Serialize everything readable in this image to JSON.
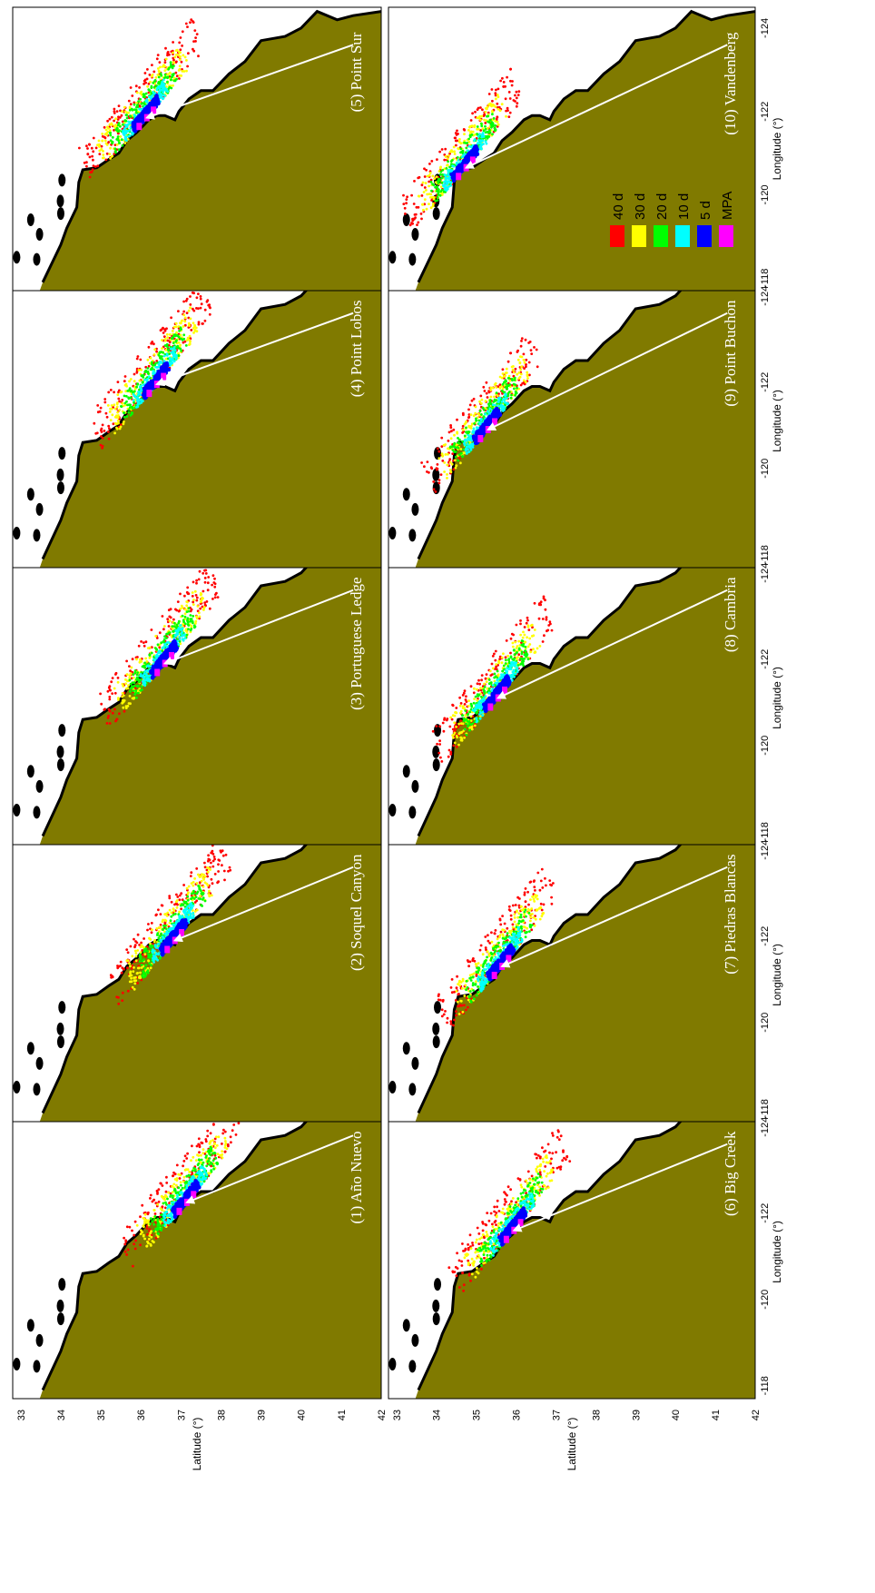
{
  "panels": [
    {
      "label": "(1) Año Nuevo",
      "site": [
        -122.25,
        37.15
      ],
      "arrow_from": [
        -123.8,
        41.3
      ]
    },
    {
      "label": "(2) Soquel Canyon",
      "site": [
        -121.9,
        36.85
      ],
      "arrow_from": [
        -123.6,
        41.3
      ]
    },
    {
      "label": "(3) Portuguese Ledge",
      "site": [
        -121.9,
        36.6
      ],
      "arrow_from": [
        -123.6,
        41.3
      ]
    },
    {
      "label": "(4) Point Lobos",
      "site": [
        -121.95,
        36.4
      ],
      "arrow_from": [
        -123.6,
        41.3
      ]
    },
    {
      "label": "(5) Point Sur",
      "site": [
        -121.85,
        36.15
      ],
      "arrow_from": [
        -123.6,
        41.3
      ]
    },
    {
      "label": "(6) Big Creek",
      "site": [
        -121.6,
        35.95
      ],
      "arrow_from": [
        -123.6,
        41.3
      ]
    },
    {
      "label": "(7) Piedras Blancas",
      "site": [
        -121.3,
        35.65
      ],
      "arrow_from": [
        -123.6,
        41.3
      ]
    },
    {
      "label": "(8) Cambria",
      "site": [
        -121.1,
        35.55
      ],
      "arrow_from": [
        -123.6,
        41.3
      ]
    },
    {
      "label": "(9) Point Buchon",
      "site": [
        -120.9,
        35.3
      ],
      "arrow_from": [
        -123.6,
        41.3
      ]
    },
    {
      "label": "(10) Vandenberg",
      "site": [
        -120.65,
        34.75
      ],
      "arrow_from": [
        -123.6,
        41.3
      ]
    }
  ],
  "axes": {
    "x_label": "Longitude (°)",
    "y_label": "Latitude (°)",
    "x_range": [
      -124.5,
      -117.7
    ],
    "y_range": [
      32.8,
      42.0
    ],
    "x_ticks": [
      -124,
      -122,
      -120,
      -118
    ],
    "y_ticks": [
      42,
      41,
      40,
      39,
      38,
      37,
      36,
      35,
      34,
      33
    ]
  },
  "legend": {
    "items": [
      {
        "label": "40 d",
        "color": "#ff0000"
      },
      {
        "label": "30 d",
        "color": "#ffff00"
      },
      {
        "label": "20 d",
        "color": "#00ff00"
      },
      {
        "label": "10 d",
        "color": "#00ffff"
      },
      {
        "label": "5 d",
        "color": "#0000ff"
      },
      {
        "label": "MPA",
        "color": "#ff00ff"
      }
    ]
  },
  "colors": {
    "land": "#807a00",
    "coast": "#000000",
    "ocean": "#ffffff",
    "arrow": "#ffffff"
  },
  "coastline": [
    [
      -124.4,
      42.0
    ],
    [
      -124.3,
      41.3
    ],
    [
      -124.2,
      40.9
    ],
    [
      -124.4,
      40.4
    ],
    [
      -124.0,
      40.0
    ],
    [
      -123.8,
      39.6
    ],
    [
      -123.7,
      39.0
    ],
    [
      -123.2,
      38.6
    ],
    [
      -122.9,
      38.2
    ],
    [
      -122.5,
      37.8
    ],
    [
      -122.5,
      37.5
    ],
    [
      -122.3,
      37.2
    ],
    [
      -122.0,
      36.95
    ],
    [
      -121.8,
      36.85
    ],
    [
      -121.9,
      36.6
    ],
    [
      -121.9,
      36.4
    ],
    [
      -121.8,
      36.2
    ],
    [
      -121.5,
      35.9
    ],
    [
      -121.3,
      35.65
    ],
    [
      -121.0,
      35.45
    ],
    [
      -120.85,
      35.2
    ],
    [
      -120.65,
      34.9
    ],
    [
      -120.6,
      34.55
    ],
    [
      -120.3,
      34.45
    ],
    [
      -119.7,
      34.4
    ],
    [
      -119.2,
      34.15
    ],
    [
      -118.8,
      34.0
    ],
    [
      -118.4,
      33.8
    ],
    [
      -118.2,
      33.7
    ],
    [
      -117.9,
      33.55
    ]
  ],
  "islands": [
    [
      -120.35,
      34.03
    ],
    [
      -119.85,
      33.99
    ],
    [
      -119.55,
      34.0
    ],
    [
      -118.45,
      33.4
    ],
    [
      -119.4,
      33.25
    ],
    [
      -119.05,
      33.47
    ],
    [
      -118.5,
      32.9
    ]
  ]
}
